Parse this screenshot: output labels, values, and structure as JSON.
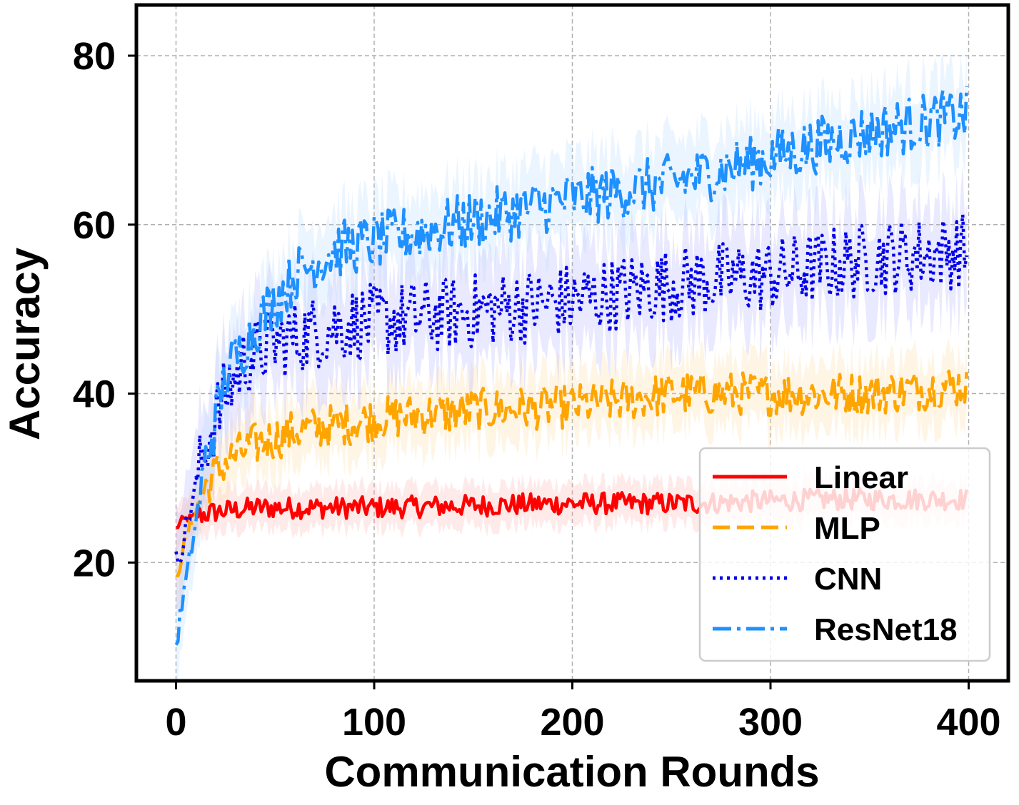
{
  "chart_data": {
    "type": "line",
    "title": "",
    "xlabel": "Communication Rounds",
    "ylabel": "Accuracy",
    "xlim": [
      -20,
      420
    ],
    "ylim": [
      6,
      86
    ],
    "xticks": [
      0,
      100,
      200,
      300,
      400
    ],
    "yticks": [
      20,
      40,
      60,
      80
    ],
    "grid": true,
    "legend_position": "lower-right",
    "rounds": 400,
    "series": [
      {
        "name": "Linear",
        "color": "#ff0000",
        "band_color": "#ffb3b3",
        "dash": "solid",
        "anchors_x": [
          0,
          3,
          10,
          20,
          40,
          100,
          200,
          260,
          330,
          398
        ],
        "anchors_y": [
          24,
          25,
          25.5,
          26,
          26.5,
          26.5,
          27,
          27,
          27.5,
          27.5
        ],
        "noise": 1.3
      },
      {
        "name": "MLP",
        "color": "#ffa500",
        "band_color": "#ffdca0",
        "dash": "dashed",
        "anchors_x": [
          0,
          3,
          8,
          15,
          25,
          40,
          60,
          100,
          150,
          200,
          250,
          300,
          350,
          398
        ],
        "anchors_y": [
          18,
          21,
          25,
          29,
          32,
          34,
          35.5,
          37,
          38,
          38.5,
          40,
          40,
          40,
          41
        ],
        "noise": 2.6
      },
      {
        "name": "CNN",
        "color": "#0000ee",
        "band_color": "#b0b0ff",
        "dash": "dotted",
        "anchors_x": [
          0,
          3,
          8,
          15,
          25,
          35,
          50,
          80,
          120,
          160,
          200,
          250,
          300,
          350,
          398
        ],
        "anchors_y": [
          20,
          22,
          27,
          34,
          40,
          44,
          46,
          48,
          49,
          50,
          51,
          53,
          54,
          56,
          57
        ],
        "noise": 4.5
      },
      {
        "name": "ResNet18",
        "color": "#1e90ff",
        "band_color": "#b8dcff",
        "dash": "dashdot",
        "anchors_x": [
          0,
          3,
          8,
          15,
          25,
          40,
          60,
          80,
          120,
          160,
          200,
          250,
          300,
          350,
          398
        ],
        "anchors_y": [
          10,
          15,
          22,
          32,
          42,
          48,
          54,
          57,
          59,
          61,
          63,
          65,
          68,
          71,
          73
        ],
        "noise": 3.4
      }
    ]
  }
}
